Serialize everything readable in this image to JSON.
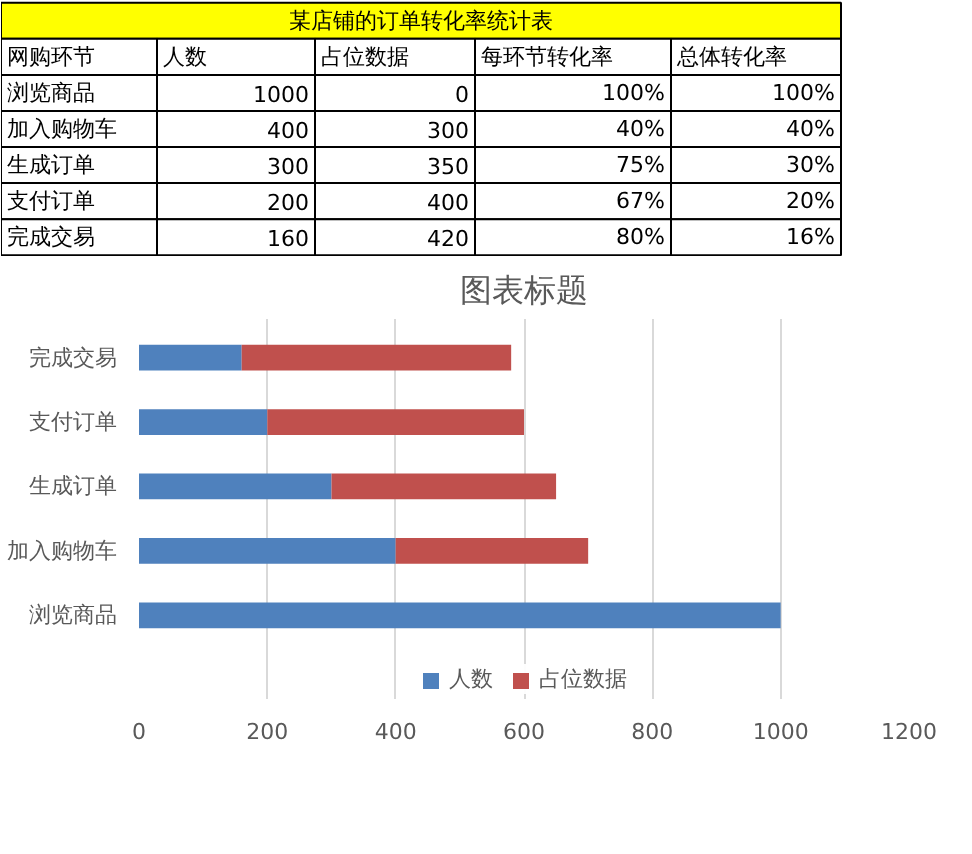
{
  "chart_data": [
    {
      "type": "other",
      "title": "某店铺的订单转化率统计表",
      "xlabel": "网购环节",
      "data_labels": true,
      "categories": [
        "浏览商品",
        "加入购物车",
        "生成订单",
        "支付订单",
        "完成交易"
      ],
      "series": [
        {
          "name": "人数",
          "values": [
            1000,
            400,
            300,
            200,
            160
          ]
        },
        {
          "name": "占位数据",
          "values": [
            0,
            300,
            350,
            400,
            420
          ]
        },
        {
          "name": "每环节转化率",
          "values": [
            100,
            40,
            75,
            67,
            80
          ],
          "value_labels": [
            "100%",
            "40%",
            "75%",
            "67%",
            "80%"
          ]
        },
        {
          "name": "总体转化率",
          "values": [
            100,
            40,
            30,
            20,
            16
          ],
          "value_labels": [
            "100%",
            "40%",
            "30%",
            "20%",
            "16%"
          ]
        }
      ]
    },
    {
      "type": "bar",
      "title": "图表标题",
      "orientation": "horizontal",
      "stacked": true,
      "categories": [
        "完成交易",
        "支付订单",
        "生成订单",
        "加入购物车",
        "浏览商品"
      ],
      "series": [
        {
          "name": "人数",
          "color": "#4f81bd",
          "values": [
            160,
            200,
            300,
            400,
            1000
          ]
        },
        {
          "name": "占位数据",
          "color": "#c0504d",
          "values": [
            420,
            400,
            350,
            300,
            0
          ]
        }
      ],
      "xlim": [
        0,
        1200
      ],
      "xticks": [
        0,
        200,
        400,
        600,
        800,
        1000,
        1200
      ],
      "grid": "x",
      "legend": "bottom"
    }
  ]
}
